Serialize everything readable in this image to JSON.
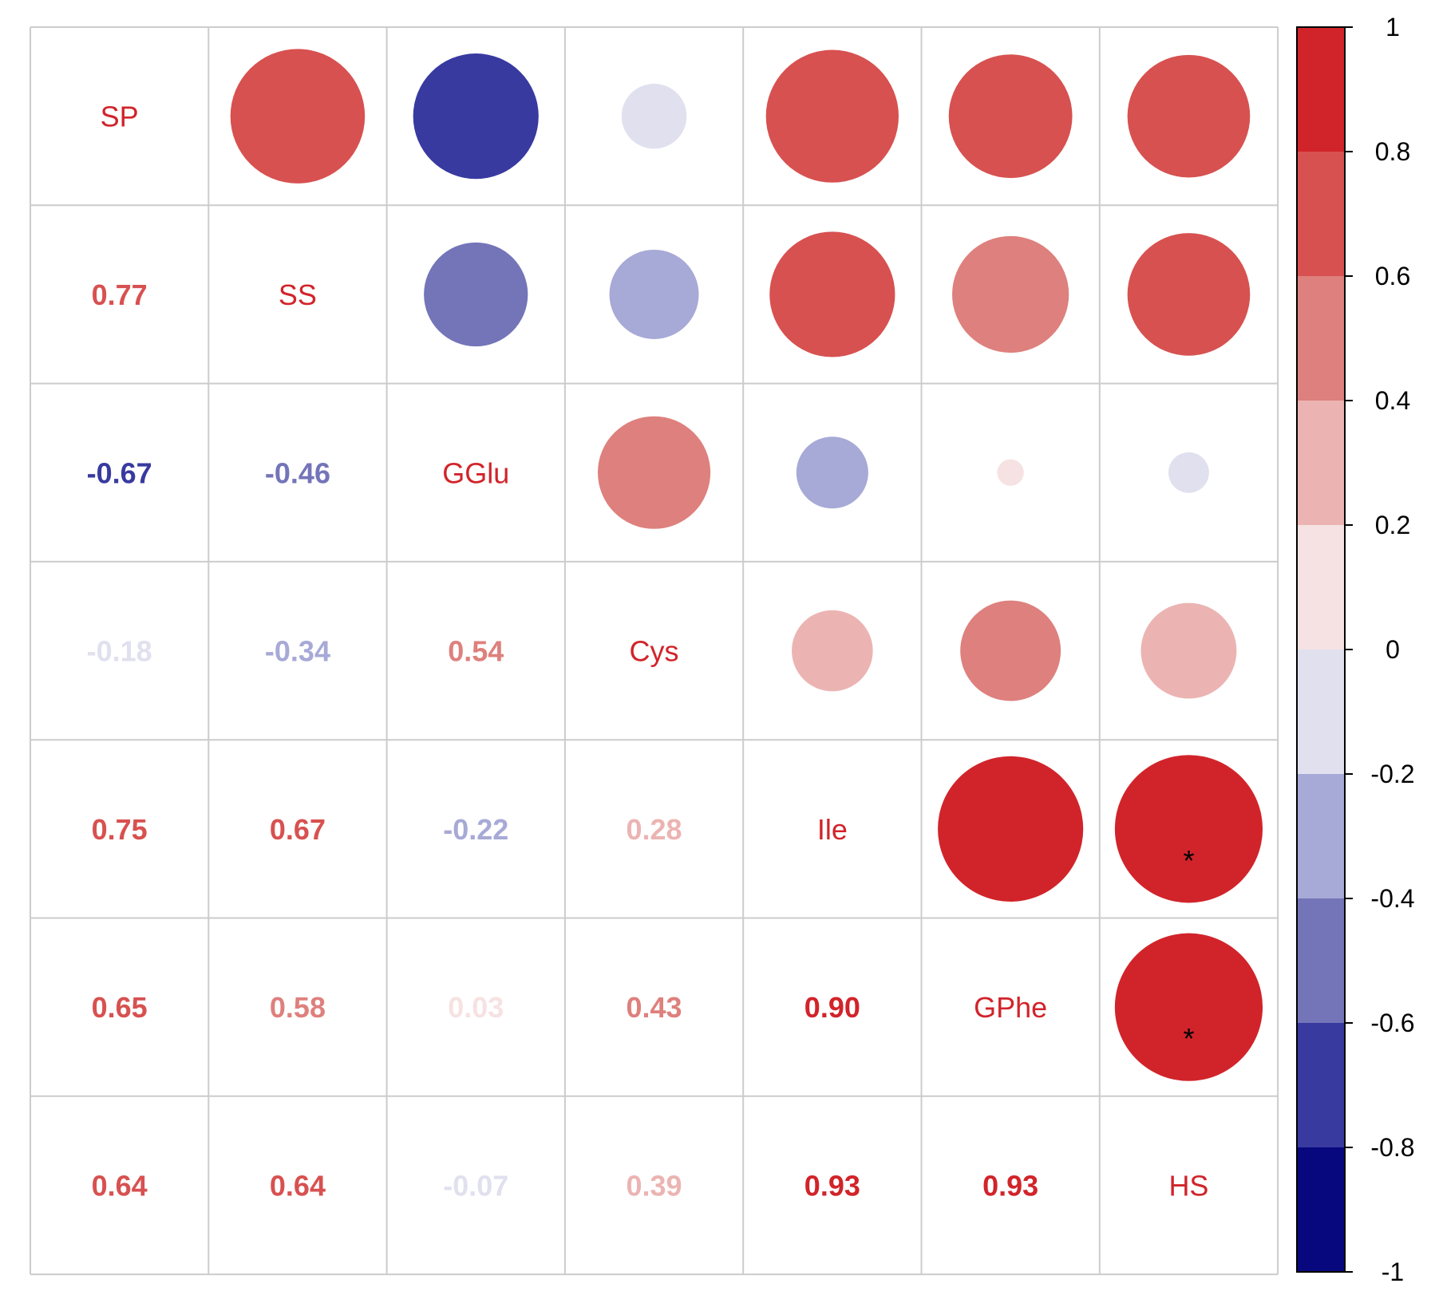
{
  "chart_data": {
    "type": "heatmap",
    "variables": [
      "SP",
      "SS",
      "GGlu",
      "Cys",
      "Ile",
      "GPhe",
      "HS"
    ],
    "lower_labels": [
      [
        "0.77"
      ],
      [
        "-0.67",
        "-0.46"
      ],
      [
        "-0.18",
        "-0.34",
        "0.54"
      ],
      [
        "0.75",
        "0.67",
        "-0.22",
        "0.28"
      ],
      [
        "0.65",
        "0.58",
        "0.03",
        "0.43",
        "0.90"
      ],
      [
        "0.64",
        "0.64",
        "-0.07",
        "0.39",
        "0.93",
        "0.93"
      ]
    ],
    "matrix": [
      [
        1,
        0.77,
        -0.67,
        -0.18,
        0.75,
        0.65,
        0.64
      ],
      [
        0.77,
        1,
        -0.46,
        -0.34,
        0.67,
        0.58,
        0.64
      ],
      [
        -0.67,
        -0.46,
        1,
        0.54,
        -0.22,
        0.03,
        -0.07
      ],
      [
        -0.18,
        -0.34,
        0.54,
        1,
        0.28,
        0.43,
        0.39
      ],
      [
        0.75,
        0.67,
        -0.22,
        0.28,
        1,
        0.9,
        0.93
      ],
      [
        0.65,
        0.58,
        0.03,
        0.43,
        0.9,
        1,
        0.93
      ],
      [
        0.64,
        0.64,
        -0.07,
        0.39,
        0.93,
        0.93,
        1
      ]
    ],
    "significance": [
      {
        "row": 4,
        "col": 6,
        "mark": "*"
      },
      {
        "row": 5,
        "col": 6,
        "mark": "*"
      }
    ],
    "colorbar": {
      "range": [
        -1,
        1
      ],
      "ticks": [
        "1",
        "0.8",
        "0.6",
        "0.4",
        "0.2",
        "0",
        "-0.2",
        "-0.4",
        "-0.6",
        "-0.8",
        "-1"
      ],
      "bins": [
        {
          "from": 0.8,
          "to": 1.0,
          "color": "#d1242a"
        },
        {
          "from": 0.6,
          "to": 0.8,
          "color": "#d75150"
        },
        {
          "from": 0.4,
          "to": 0.6,
          "color": "#de807d"
        },
        {
          "from": 0.2,
          "to": 0.4,
          "color": "#ebb4b2"
        },
        {
          "from": 0.0,
          "to": 0.2,
          "color": "#f6e2e2"
        },
        {
          "from": -0.2,
          "to": 0.0,
          "color": "#e0e0ef"
        },
        {
          "from": -0.4,
          "to": -0.2,
          "color": "#a7a9d6"
        },
        {
          "from": -0.6,
          "to": -0.4,
          "color": "#7474b9"
        },
        {
          "from": -0.8,
          "to": -0.6,
          "color": "#383aa0"
        },
        {
          "from": -1.0,
          "to": -0.8,
          "color": "#08087e"
        }
      ]
    },
    "diagonal_label_color": "#d1242a",
    "grid_color": "#cccccc"
  }
}
